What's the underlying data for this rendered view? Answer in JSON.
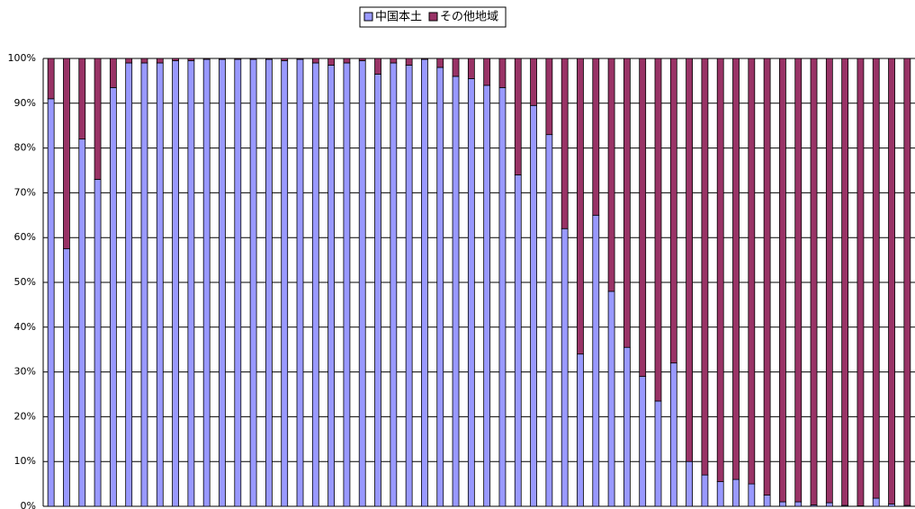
{
  "chart_data": {
    "type": "stacked_bar_100",
    "categories": [
      null,
      null,
      null,
      null,
      null,
      null,
      null,
      null,
      null,
      null,
      null,
      null,
      null,
      null,
      null,
      null,
      null,
      null,
      null,
      null,
      null,
      null,
      null,
      null,
      null,
      null,
      null,
      null,
      null,
      null,
      null,
      null,
      null,
      null,
      null,
      null,
      null,
      null,
      null,
      null,
      null,
      null,
      null,
      null,
      null,
      null,
      null,
      null,
      null,
      null,
      null,
      null,
      null,
      null,
      null,
      null
    ],
    "series": [
      {
        "name": "中国本土",
        "color": "#9999ff",
        "values": [
          91,
          57.5,
          82,
          73,
          93.5,
          99,
          99,
          99,
          99.5,
          99.5,
          99.8,
          99.8,
          99.8,
          99.8,
          99.8,
          99.5,
          99.8,
          99,
          98.5,
          99,
          99.5,
          96.5,
          99,
          98.5,
          99.8,
          98,
          96,
          95.5,
          94,
          93.5,
          74,
          89.5,
          83,
          62,
          34,
          65,
          48,
          35.5,
          29,
          23.5,
          32,
          10,
          7,
          5.5,
          6,
          5,
          2.5,
          1,
          1,
          0.3,
          0.8,
          0.2,
          0.1,
          1.8,
          0.5,
          0.2
        ]
      },
      {
        "name": "その他地域",
        "color": "#993366",
        "values": [
          9,
          42.5,
          18,
          27,
          6.5,
          1,
          1,
          1,
          0.5,
          0.5,
          0.2,
          0.2,
          0.2,
          0.2,
          0.2,
          0.5,
          0.2,
          1,
          1.5,
          1,
          0.5,
          3.5,
          1,
          1.5,
          0.2,
          2,
          4,
          4.5,
          6,
          6.5,
          26,
          10.5,
          17,
          38,
          66,
          35,
          52,
          64.5,
          71,
          76.5,
          68,
          90,
          93,
          94.5,
          94,
          95,
          97.5,
          99,
          99,
          99.7,
          99.2,
          99.8,
          99.9,
          98.2,
          99.5,
          99.8
        ]
      }
    ],
    "ylim": [
      0,
      100
    ],
    "yticks": [
      {
        "value": 0,
        "label": "0%"
      },
      {
        "value": 10,
        "label": "10%"
      },
      {
        "value": 20,
        "label": "20%"
      },
      {
        "value": 30,
        "label": "30%"
      },
      {
        "value": 40,
        "label": "40%"
      },
      {
        "value": 50,
        "label": "50%"
      },
      {
        "value": 60,
        "label": "60%"
      },
      {
        "value": 70,
        "label": "70%"
      },
      {
        "value": 80,
        "label": "80%"
      },
      {
        "value": 90,
        "label": "90%"
      },
      {
        "value": 100,
        "label": "100%"
      }
    ],
    "grid": true,
    "legend": "top"
  }
}
